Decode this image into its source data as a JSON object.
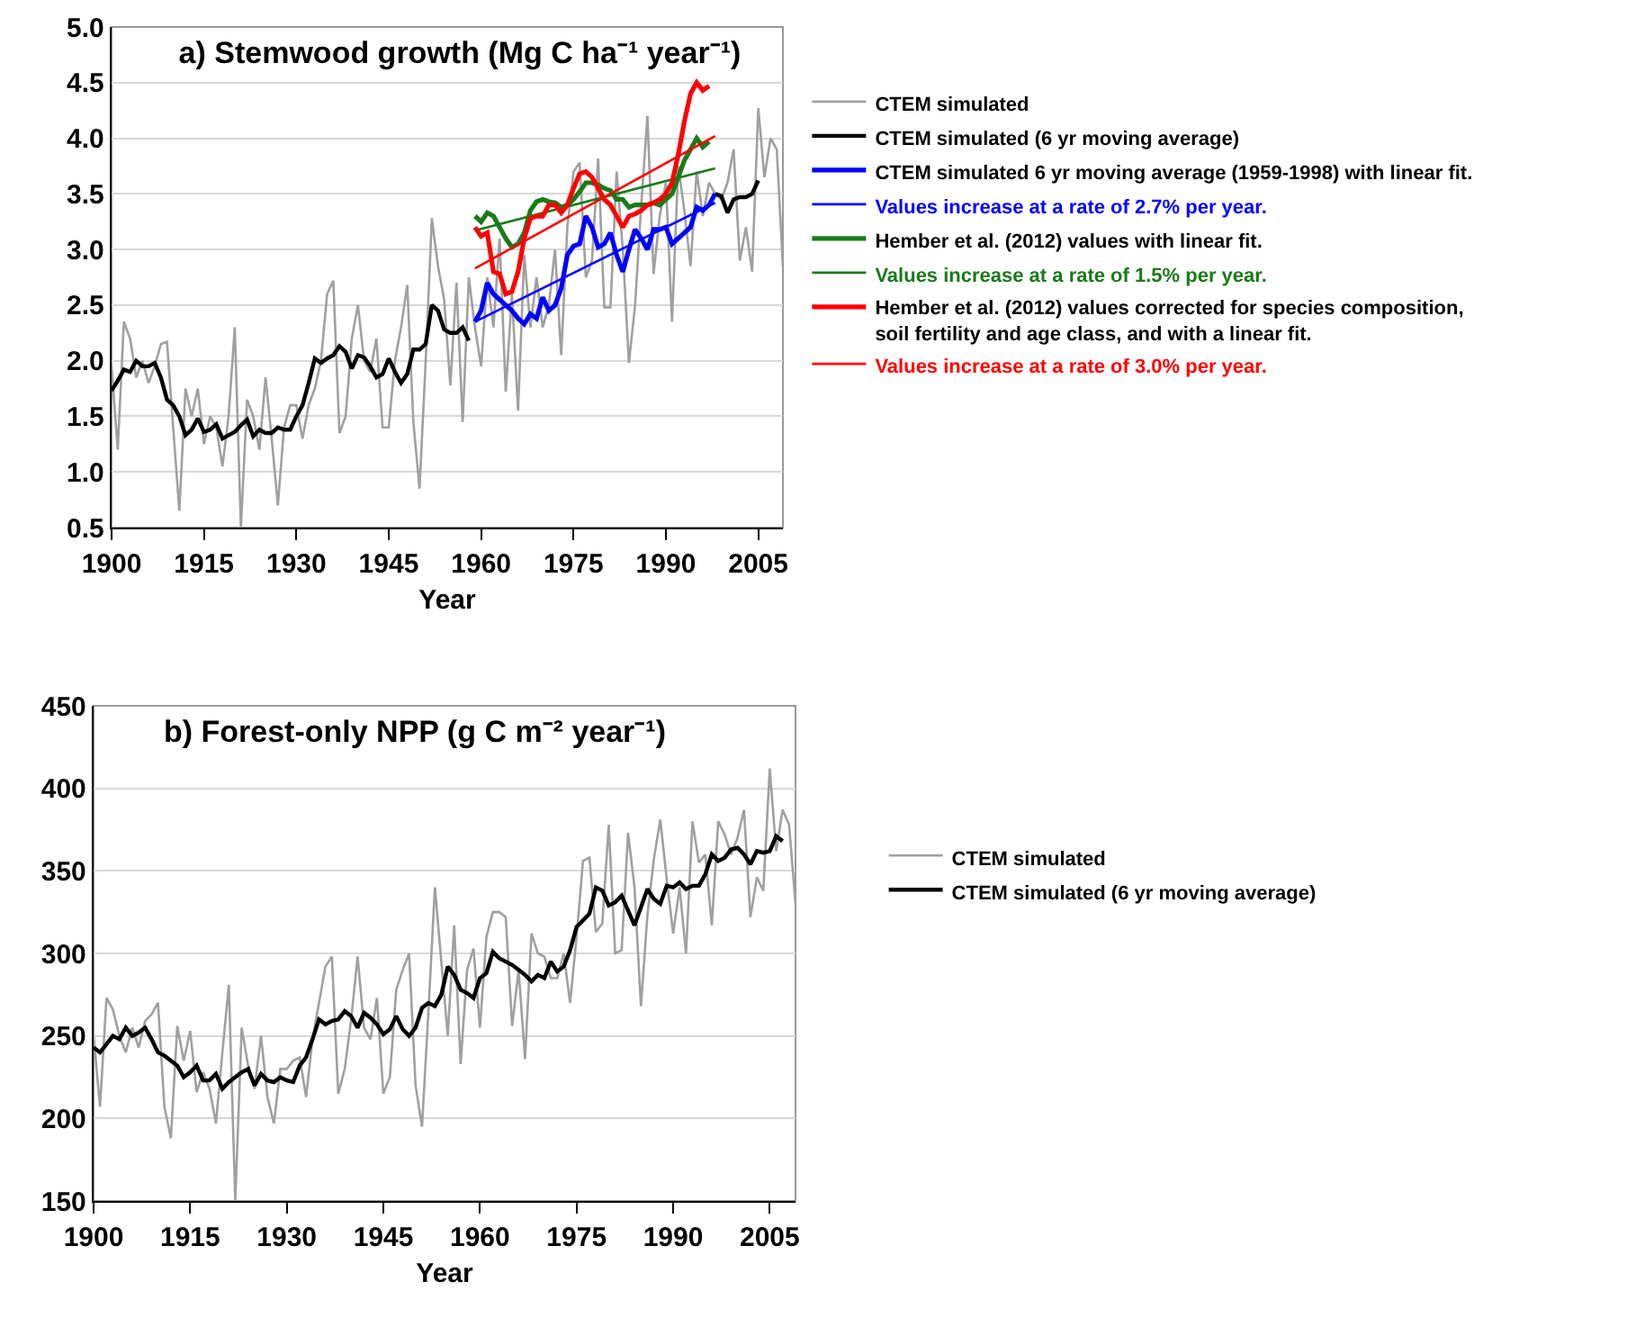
{
  "chart_data": [
    {
      "type": "line",
      "title": "a) Stemwood growth (Mg C ha⁻¹ year⁻¹)",
      "xlabel": "Year",
      "xlim": [
        1900,
        2009
      ],
      "ylim": [
        0.5,
        5
      ],
      "xticks": [
        1900,
        1915,
        1930,
        1945,
        1960,
        1975,
        1990,
        2005
      ],
      "yticks": [
        0.5,
        {
          "value": 1,
          "label": "1.0"
        },
        1.5,
        {
          "value": 2,
          "label": "2.0"
        },
        2.5,
        {
          "value": 3,
          "label": "3.0"
        },
        3.5,
        {
          "value": 4,
          "label": "4.0"
        },
        4.5,
        {
          "value": 5,
          "label": "5.0"
        }
      ],
      "grid": "y",
      "legend": "right",
      "x": [
        1900,
        1901,
        1902,
        1903,
        1904,
        1905,
        1906,
        1907,
        1908,
        1909,
        1910,
        1911,
        1912,
        1913,
        1914,
        1915,
        1916,
        1917,
        1918,
        1919,
        1920,
        1921,
        1922,
        1923,
        1924,
        1925,
        1926,
        1927,
        1928,
        1929,
        1930,
        1931,
        1932,
        1933,
        1934,
        1935,
        1936,
        1937,
        1938,
        1939,
        1940,
        1941,
        1942,
        1943,
        1944,
        1945,
        1946,
        1947,
        1948,
        1949,
        1950,
        1951,
        1952,
        1953,
        1954,
        1955,
        1956,
        1957,
        1958,
        1959,
        1960,
        1961,
        1962,
        1963,
        1964,
        1965,
        1966,
        1967,
        1968,
        1969,
        1970,
        1971,
        1972,
        1973,
        1974,
        1975,
        1976,
        1977,
        1978,
        1979,
        1980,
        1981,
        1982,
        1983,
        1984,
        1985,
        1986,
        1987,
        1988,
        1989,
        1990,
        1991,
        1992,
        1993,
        1994,
        1995,
        1996,
        1997,
        1998,
        1999,
        2000,
        2001,
        2002,
        2003,
        2004,
        2005,
        2006,
        2007,
        2008,
        2009
      ],
      "series": [
        {
          "name": "CTEM simulated",
          "color": "#a0a0a0",
          "values": [
            1.95,
            1.2,
            2.35,
            2.2,
            1.85,
            2.0,
            1.8,
            1.95,
            2.15,
            2.17,
            1.4,
            0.65,
            1.75,
            1.5,
            1.75,
            1.25,
            1.5,
            1.4,
            1.05,
            1.5,
            2.3,
            0.5,
            1.65,
            1.5,
            1.2,
            1.85,
            1.3,
            0.7,
            1.4,
            1.6,
            1.6,
            1.3,
            1.6,
            1.75,
            2.0,
            2.6,
            2.72,
            1.35,
            1.5,
            2.2,
            2.5,
            2.0,
            1.9,
            2.2,
            1.4,
            1.4,
            2.0,
            2.3,
            2.68,
            1.45,
            0.85,
            2.0,
            3.28,
            2.85,
            2.55,
            1.78,
            2.7,
            1.45,
            2.75,
            2.3,
            1.95,
            2.75,
            2.3,
            3.1,
            1.72,
            2.6,
            1.55,
            2.95,
            2.3,
            2.75,
            2.3,
            2.5,
            3.0,
            2.05,
            3.2,
            3.7,
            3.78,
            2.75,
            2.9,
            3.82,
            2.48,
            2.48,
            3.7,
            3.0,
            1.98,
            2.5,
            3.4,
            4.2,
            2.78,
            3.3,
            3.6,
            2.35,
            3.75,
            3.35,
            2.85,
            3.7,
            3.3,
            3.6,
            3.5,
            3.45,
            3.6,
            3.9,
            2.9,
            3.2,
            2.8,
            4.27,
            3.65,
            4.0,
            3.9,
            2.85
          ]
        },
        {
          "name": "CTEM simulated (6 yr moving average)",
          "color": "#000000",
          "values": [
            1.73,
            1.82,
            1.92,
            1.9,
            2.0,
            1.95,
            1.95,
            1.98,
            1.85,
            1.65,
            1.6,
            1.5,
            1.33,
            1.38,
            1.48,
            1.36,
            1.38,
            1.43,
            1.3,
            1.33,
            1.36,
            1.42,
            1.47,
            1.32,
            1.38,
            1.35,
            1.35,
            1.4,
            1.38,
            1.38,
            1.5,
            1.6,
            1.8,
            2.02,
            1.98,
            2.02,
            2.05,
            2.13,
            2.08,
            1.93,
            2.05,
            2.03,
            1.95,
            1.85,
            1.88,
            2.02,
            1.9,
            1.8,
            1.88,
            2.1,
            2.1,
            2.15,
            2.5,
            2.45,
            2.28,
            2.25,
            2.25,
            2.3,
            2.18,
            null,
            null,
            null,
            null,
            null,
            null,
            null,
            null,
            null,
            null,
            null,
            null,
            null,
            null,
            null,
            null,
            null,
            null,
            null,
            null,
            null,
            null,
            null,
            null,
            null,
            null,
            null,
            null,
            null,
            null,
            null,
            null,
            null,
            null,
            null,
            null,
            null,
            null,
            null,
            3.5,
            3.48,
            3.33,
            3.45,
            3.47,
            3.47,
            3.5,
            3.62,
            null,
            null,
            null,
            null
          ]
        },
        {
          "name": "CTEM simulated 6 yr moving average (1959-1998) with linear fit.",
          "color": "#0000ff",
          "x": [
            1959,
            1960,
            1961,
            1962,
            1963,
            1964,
            1965,
            1966,
            1967,
            1968,
            1969,
            1970,
            1971,
            1972,
            1973,
            1974,
            1975,
            1976,
            1977,
            1978,
            1979,
            1980,
            1981,
            1982,
            1983,
            1984,
            1985,
            1986,
            1987,
            1988,
            1989,
            1990,
            1991,
            1992,
            1993,
            1994,
            1995,
            1996,
            1997,
            1998
          ],
          "values": [
            2.35,
            2.45,
            2.7,
            2.6,
            2.55,
            2.5,
            2.45,
            2.38,
            2.33,
            2.42,
            2.38,
            2.57,
            2.45,
            2.5,
            2.65,
            2.95,
            3.03,
            3.05,
            3.3,
            3.2,
            3.02,
            3.05,
            3.15,
            2.95,
            2.8,
            3.0,
            3.18,
            3.1,
            3.0,
            3.18,
            3.18,
            3.2,
            3.05,
            3.1,
            3.15,
            3.2,
            3.38,
            3.35,
            3.4,
            3.5
          ]
        },
        {
          "name": "Values increase at a rate of 2.7% per year.",
          "color": "#0000ff",
          "x": [
            1959,
            1998
          ],
          "values": [
            2.35,
            3.42
          ]
        },
        {
          "name": "Hember et al. (2012) values with linear fit.",
          "color": "#1a7a1a",
          "x": [
            1959,
            1960,
            1961,
            1962,
            1963,
            1964,
            1965,
            1966,
            1967,
            1968,
            1969,
            1970,
            1971,
            1972,
            1973,
            1974,
            1975,
            1976,
            1977,
            1978,
            1979,
            1980,
            1981,
            1982,
            1983,
            1984,
            1985,
            1986,
            1987,
            1988,
            1989,
            1990,
            1991,
            1992,
            1993,
            1994,
            1995,
            1996,
            1997
          ],
          "values": [
            3.3,
            3.25,
            3.33,
            3.3,
            3.2,
            3.1,
            3.02,
            3.05,
            3.15,
            3.35,
            3.43,
            3.45,
            3.43,
            3.42,
            3.38,
            3.4,
            3.45,
            3.52,
            3.6,
            3.6,
            3.58,
            3.55,
            3.53,
            3.45,
            3.45,
            3.38,
            3.4,
            3.4,
            3.4,
            3.42,
            3.4,
            3.45,
            3.5,
            3.65,
            3.8,
            3.9,
            4.0,
            3.92,
            3.97
          ]
        },
        {
          "name": "Values increase at a rate of 1.5% per year.",
          "color": "#1a7a1a",
          "x": [
            1959,
            1998
          ],
          "values": [
            3.17,
            3.73
          ]
        },
        {
          "name": "Hember et al. (2012) values corrected for species composition, soil fertility and age class, and with a linear fit.",
          "color": "#ff0000",
          "x": [
            1959,
            1960,
            1961,
            1962,
            1963,
            1964,
            1965,
            1966,
            1967,
            1968,
            1969,
            1970,
            1971,
            1972,
            1973,
            1974,
            1975,
            1976,
            1977,
            1978,
            1979,
            1980,
            1981,
            1982,
            1983,
            1984,
            1985,
            1986,
            1987,
            1988,
            1989,
            1990,
            1991,
            1992,
            1993,
            1994,
            1995,
            1996,
            1997
          ],
          "values": [
            3.2,
            3.12,
            3.15,
            2.8,
            2.78,
            2.6,
            2.62,
            2.8,
            3.1,
            3.28,
            3.3,
            3.3,
            3.4,
            3.4,
            3.33,
            3.4,
            3.55,
            3.68,
            3.7,
            3.65,
            3.55,
            3.45,
            3.4,
            3.3,
            3.2,
            3.3,
            3.32,
            3.35,
            3.4,
            3.42,
            3.45,
            3.5,
            3.6,
            3.85,
            4.15,
            4.4,
            4.5,
            4.43,
            4.47
          ]
        },
        {
          "name": "Values increase at a rate of 3.0% per year.",
          "color": "#ff0000",
          "x": [
            1959,
            1998
          ],
          "values": [
            2.83,
            4.02
          ]
        }
      ]
    },
    {
      "type": "line",
      "title": "b) Forest-only NPP (g C m⁻² year⁻¹)",
      "xlabel": "Year",
      "xlim": [
        1900,
        2009
      ],
      "ylim": [
        150,
        450
      ],
      "xticks": [
        1900,
        1915,
        1930,
        1945,
        1960,
        1975,
        1990,
        2005
      ],
      "yticks": [
        150,
        200,
        250,
        300,
        350,
        400,
        450
      ],
      "grid": "y",
      "legend": "right",
      "x": [
        1900,
        1901,
        1902,
        1903,
        1904,
        1905,
        1906,
        1907,
        1908,
        1909,
        1910,
        1911,
        1912,
        1913,
        1914,
        1915,
        1916,
        1917,
        1918,
        1919,
        1920,
        1921,
        1922,
        1923,
        1924,
        1925,
        1926,
        1927,
        1928,
        1929,
        1930,
        1931,
        1932,
        1933,
        1934,
        1935,
        1936,
        1937,
        1938,
        1939,
        1940,
        1941,
        1942,
        1943,
        1944,
        1945,
        1946,
        1947,
        1948,
        1949,
        1950,
        1951,
        1952,
        1953,
        1954,
        1955,
        1956,
        1957,
        1958,
        1959,
        1960,
        1961,
        1962,
        1963,
        1964,
        1965,
        1966,
        1967,
        1968,
        1969,
        1970,
        1971,
        1972,
        1973,
        1974,
        1975,
        1976,
        1977,
        1978,
        1979,
        1980,
        1981,
        1982,
        1983,
        1984,
        1985,
        1986,
        1987,
        1988,
        1989,
        1990,
        1991,
        1992,
        1993,
        1994,
        1995,
        1996,
        1997,
        1998,
        1999,
        2000,
        2001,
        2002,
        2003,
        2004,
        2005,
        2006,
        2007,
        2008,
        2009
      ],
      "series": [
        {
          "name": "CTEM simulated",
          "color": "#a0a0a0",
          "values": [
            250,
            207,
            273,
            266,
            250,
            240,
            255,
            243,
            259,
            263,
            270,
            207,
            188,
            256,
            235,
            253,
            216,
            228,
            218,
            197,
            240,
            281,
            150,
            255,
            232,
            218,
            250,
            213,
            197,
            230,
            230,
            235,
            237,
            213,
            248,
            270,
            292,
            298,
            215,
            230,
            260,
            298,
            255,
            248,
            273,
            215,
            225,
            278,
            290,
            300,
            220,
            195,
            265,
            340,
            295,
            250,
            317,
            233,
            290,
            303,
            255,
            310,
            325,
            325,
            322,
            256,
            290,
            236,
            312,
            300,
            298,
            285,
            285,
            300,
            270,
            310,
            356,
            358,
            313,
            318,
            378,
            300,
            302,
            373,
            340,
            268,
            323,
            357,
            381,
            345,
            312,
            340,
            300,
            380,
            355,
            360,
            317,
            380,
            372,
            360,
            370,
            387,
            322,
            346,
            338,
            412,
            362,
            387,
            378,
            330
          ]
        },
        {
          "name": "CTEM simulated (6 yr moving average)",
          "color": "#000000",
          "values": [
            243,
            240,
            245,
            250,
            248,
            255,
            250,
            252,
            255,
            248,
            240,
            238,
            235,
            232,
            225,
            228,
            232,
            223,
            223,
            227,
            218,
            222,
            225,
            228,
            230,
            220,
            227,
            223,
            222,
            225,
            223,
            222,
            232,
            237,
            248,
            260,
            257,
            259,
            260,
            265,
            262,
            255,
            264,
            261,
            257,
            251,
            254,
            262,
            254,
            250,
            255,
            267,
            270,
            268,
            275,
            292,
            287,
            278,
            276,
            273,
            285,
            288,
            301,
            297,
            295,
            293,
            290,
            287,
            283,
            287,
            285,
            295,
            289,
            292,
            302,
            316,
            320,
            324,
            340,
            338,
            329,
            331,
            335,
            326,
            317,
            328,
            339,
            333,
            330,
            341,
            340,
            343,
            339,
            341,
            341,
            348,
            360,
            356,
            358,
            363,
            364,
            360,
            354,
            362,
            361,
            362,
            371,
            368,
            null,
            null
          ]
        }
      ]
    }
  ]
}
